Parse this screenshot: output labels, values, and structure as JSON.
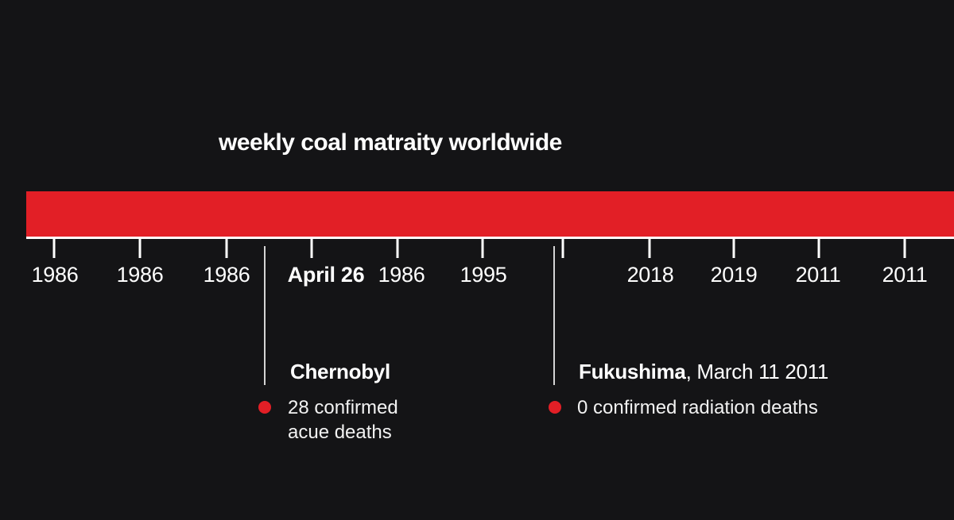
{
  "title": "weekly coal matraity worldwide",
  "colors": {
    "background": "#141416",
    "band": "#e21f26",
    "text": "#ffffff",
    "marker": "#e21f26"
  },
  "axis": {
    "labels": [
      {
        "text": "1986"
      },
      {
        "text": "1986"
      },
      {
        "text": "1986"
      },
      {
        "text": "April 26",
        "text_b": "1986"
      },
      {
        "text": "1995"
      },
      {
        "text": "2018"
      },
      {
        "text": "2019"
      },
      {
        "text": "2011"
      },
      {
        "text": "2011"
      }
    ]
  },
  "events": {
    "chernobyl": {
      "name": "Chernobyl",
      "detail_line1": "28 confirmed",
      "detail_line2": "acue deaths"
    },
    "fukushima": {
      "name": "Fukushima",
      "date": ", March 11 2011",
      "detail": "0 confirmed radiation deaths"
    }
  }
}
